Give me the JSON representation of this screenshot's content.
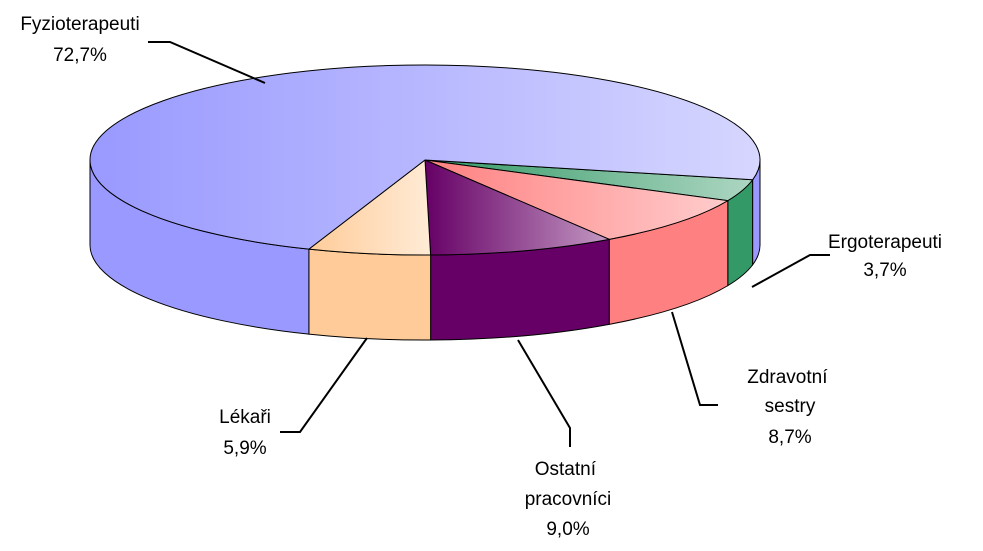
{
  "chart_data": {
    "type": "pie3d",
    "categories": [
      "Ergoterapeuti",
      "Zdravotní sestry",
      "Ostatní pracovníci",
      "Lékaři",
      "Fyzioterapeuti"
    ],
    "values": [
      3.7,
      8.7,
      9.0,
      5.9,
      72.7
    ],
    "value_labels": [
      "3,7%",
      "8,7%",
      "9,0%",
      "5,9%",
      "72,7%"
    ],
    "colors": [
      "#339966",
      "#ff8080",
      "#660066",
      "#ffcc99",
      "#9999ff"
    ]
  }
}
